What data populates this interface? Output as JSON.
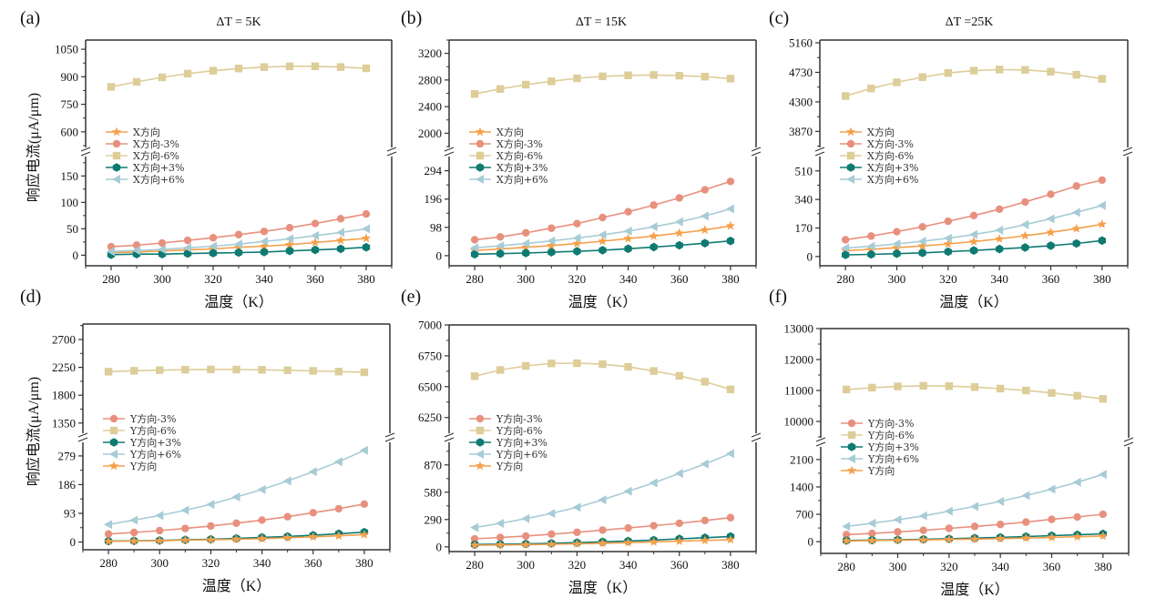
{
  "figure": {
    "y_axis_title": "响应电流(μA/μm)",
    "x_axis_title": "温度（K）"
  },
  "series_styles": {
    "base": {
      "color": "#F5A04A",
      "marker": "star"
    },
    "m3": {
      "color": "#E8907E",
      "marker": "circle"
    },
    "m6": {
      "color": "#DDCD99",
      "marker": "square"
    },
    "p3": {
      "color": "#0E7A72",
      "marker": "hexagon"
    },
    "p6": {
      "color": "#A7CCD6",
      "marker": "triangle-left"
    }
  },
  "chart_data": [
    {
      "panel": "(a)",
      "title": "ΔT = 5K",
      "type": "line",
      "xlabel": "温度（K）",
      "ylabel": "响应电流(μA/μm)",
      "x": [
        280,
        290,
        300,
        310,
        320,
        330,
        340,
        350,
        360,
        370,
        380
      ],
      "xlim": [
        270,
        390
      ],
      "xticks": [
        280,
        300,
        320,
        340,
        360,
        380
      ],
      "broken_y_axis": true,
      "upper_ylim": [
        520,
        1100
      ],
      "upper_yticks": [
        600,
        750,
        900,
        1050
      ],
      "lower_ylim": [
        -20,
        185
      ],
      "lower_yticks": [
        0,
        50,
        100,
        150
      ],
      "legend_position": "left-middle",
      "legend_order": [
        "base",
        "m3",
        "m6",
        "p3",
        "p6"
      ],
      "series": [
        {
          "key": "base",
          "name": "X方向",
          "values": [
            5,
            6,
            8,
            10,
            12,
            15,
            17,
            20,
            24,
            28,
            32
          ]
        },
        {
          "key": "m3",
          "name": "X方向-3%",
          "values": [
            16,
            19,
            23,
            28,
            33,
            39,
            45,
            52,
            60,
            69,
            78
          ]
        },
        {
          "key": "m6",
          "name": "X方向-6%",
          "values": [
            845,
            872,
            897,
            917,
            933,
            945,
            953,
            957,
            957,
            953,
            946
          ]
        },
        {
          "key": "p3",
          "name": "X方向+3%",
          "values": [
            1,
            2,
            2,
            3,
            4,
            5,
            6,
            8,
            10,
            12,
            15
          ]
        },
        {
          "key": "p6",
          "name": "X方向+6%",
          "values": [
            7,
            9,
            11,
            14,
            17,
            21,
            26,
            31,
            37,
            43,
            50
          ]
        }
      ]
    },
    {
      "panel": "(b)",
      "title": "ΔT = 15K",
      "type": "line",
      "xlabel": "温度（K）",
      "ylabel": "",
      "x": [
        280,
        290,
        300,
        310,
        320,
        330,
        340,
        350,
        360,
        370,
        380
      ],
      "xlim": [
        270,
        390
      ],
      "xticks": [
        280,
        300,
        320,
        340,
        360,
        380
      ],
      "broken_y_axis": true,
      "upper_ylim": [
        1800,
        3400
      ],
      "upper_yticks": [
        2000,
        2400,
        2800,
        3200
      ],
      "lower_ylim": [
        -35,
        340
      ],
      "lower_yticks": [
        0,
        98,
        196,
        294
      ],
      "legend_position": "left-middle",
      "legend_order": [
        "base",
        "m3",
        "m6",
        "p3",
        "p6"
      ],
      "series": [
        {
          "key": "base",
          "name": "X方向",
          "values": [
            18,
            23,
            29,
            35,
            42,
            50,
            59,
            68,
            78,
            89,
            103
          ]
        },
        {
          "key": "m3",
          "name": "X方向-3%",
          "values": [
            55,
            65,
            79,
            95,
            111,
            132,
            152,
            175,
            200,
            228,
            257
          ]
        },
        {
          "key": "m6",
          "name": "X方向-6%",
          "values": [
            2590,
            2665,
            2730,
            2780,
            2825,
            2855,
            2870,
            2875,
            2865,
            2850,
            2820
          ]
        },
        {
          "key": "p3",
          "name": "X方向+3%",
          "values": [
            5,
            7,
            9,
            12,
            15,
            19,
            24,
            30,
            36,
            43,
            51
          ]
        },
        {
          "key": "p6",
          "name": "X方向+6%",
          "values": [
            27,
            34,
            42,
            51,
            61,
            72,
            85,
            100,
            117,
            137,
            162
          ]
        }
      ]
    },
    {
      "panel": "(c)",
      "title": "ΔT =25K",
      "type": "line",
      "xlabel": "温度（K）",
      "ylabel": "",
      "x": [
        280,
        290,
        300,
        310,
        320,
        330,
        340,
        350,
        360,
        370,
        380
      ],
      "xlim": [
        270,
        390
      ],
      "xticks": [
        280,
        300,
        320,
        340,
        360,
        380
      ],
      "broken_y_axis": true,
      "upper_ylim": [
        3650,
        5200
      ],
      "upper_yticks": [
        3870,
        4300,
        4730,
        5160
      ],
      "lower_ylim": [
        -55,
        590
      ],
      "lower_yticks": [
        0,
        170,
        340,
        510
      ],
      "legend_position": "left-middle",
      "legend_order": [
        "base",
        "m3",
        "m6",
        "p3",
        "p6"
      ],
      "series": [
        {
          "key": "base",
          "name": "X方向",
          "values": [
            35,
            43,
            53,
            63,
            75,
            89,
            105,
            124,
            144,
            166,
            192
          ]
        },
        {
          "key": "m3",
          "name": "X方向-3%",
          "values": [
            100,
            122,
            148,
            177,
            210,
            244,
            282,
            325,
            371,
            420,
            455
          ]
        },
        {
          "key": "m6",
          "name": "X方向-6%",
          "values": [
            4385,
            4495,
            4585,
            4660,
            4720,
            4755,
            4770,
            4765,
            4740,
            4695,
            4635
          ]
        },
        {
          "key": "p3",
          "name": "X方向+3%",
          "values": [
            10,
            13,
            17,
            22,
            29,
            36,
            45,
            54,
            65,
            78,
            95
          ]
        },
        {
          "key": "p6",
          "name": "X方向+6%",
          "values": [
            50,
            61,
            75,
            91,
            109,
            131,
            157,
            190,
            225,
            263,
            304
          ]
        }
      ]
    },
    {
      "panel": "(d)",
      "title": "",
      "type": "line",
      "xlabel": "温度（K）",
      "ylabel": "响应电流(μA/μm)",
      "x": [
        280,
        290,
        300,
        310,
        320,
        330,
        340,
        350,
        360,
        370,
        380
      ],
      "xlim": [
        270,
        390
      ],
      "xticks": [
        280,
        300,
        320,
        340,
        360,
        380
      ],
      "broken_y_axis": true,
      "upper_ylim": [
        1200,
        2950
      ],
      "upper_yticks": [
        1350,
        1800,
        2250,
        2700
      ],
      "lower_ylim": [
        -25,
        320
      ],
      "lower_yticks": [
        0,
        93,
        186,
        279
      ],
      "legend_position": "left-middle",
      "legend_order": [
        "m3",
        "m6",
        "p3",
        "p6",
        "base"
      ],
      "series": [
        {
          "key": "m3",
          "name": "Y方向-3%",
          "values": [
            26,
            31,
            37,
            44,
            52,
            61,
            71,
            82,
            95,
            108,
            123
          ]
        },
        {
          "key": "m6",
          "name": "Y方向-6%",
          "values": [
            2180,
            2195,
            2205,
            2212,
            2216,
            2215,
            2210,
            2203,
            2193,
            2182,
            2170
          ]
        },
        {
          "key": "p3",
          "name": "Y方向+3%",
          "values": [
            3,
            4,
            5,
            7,
            9,
            12,
            15,
            18,
            22,
            27,
            32
          ]
        },
        {
          "key": "p6",
          "name": "Y方向+6%",
          "values": [
            57,
            71,
            86,
            103,
            122,
            146,
            170,
            198,
            228,
            260,
            297
          ]
        },
        {
          "key": "base",
          "name": "Y方向",
          "values": [
            2,
            3,
            4,
            6,
            7,
            9,
            11,
            14,
            17,
            20,
            24
          ]
        }
      ]
    },
    {
      "panel": "(e)",
      "title": "",
      "type": "line",
      "xlabel": "温度（K）",
      "ylabel": "",
      "x": [
        280,
        290,
        300,
        310,
        320,
        330,
        340,
        350,
        360,
        370,
        380
      ],
      "xlim": [
        270,
        390
      ],
      "xticks": [
        280,
        300,
        320,
        340,
        360,
        380
      ],
      "broken_y_axis": true,
      "upper_ylim": [
        6130,
        7000
      ],
      "upper_yticks": [
        6250,
        6500,
        6750,
        7000
      ],
      "lower_ylim": [
        -50,
        1100
      ],
      "lower_yticks": [
        0,
        290,
        580,
        870
      ],
      "legend_position": "left-middle",
      "legend_order": [
        "m3",
        "m6",
        "p3",
        "p6",
        "base"
      ],
      "series": [
        {
          "key": "m3",
          "name": "Y方向-3%",
          "values": [
            85,
            100,
            115,
            135,
            155,
            178,
            200,
            225,
            250,
            280,
            310
          ]
        },
        {
          "key": "m6",
          "name": "Y方向-6%",
          "values": [
            6585,
            6635,
            6668,
            6688,
            6690,
            6682,
            6660,
            6627,
            6588,
            6540,
            6478
          ]
        },
        {
          "key": "p3",
          "name": "Y方向+3%",
          "values": [
            25,
            28,
            32,
            38,
            45,
            53,
            62,
            72,
            85,
            97,
            110
          ]
        },
        {
          "key": "p6",
          "name": "Y方向+6%",
          "values": [
            205,
            250,
            300,
            355,
            420,
            500,
            590,
            680,
            780,
            880,
            990
          ]
        },
        {
          "key": "base",
          "name": "Y方向",
          "values": [
            18,
            20,
            23,
            27,
            32,
            38,
            45,
            52,
            60,
            68,
            77
          ]
        }
      ]
    },
    {
      "panel": "(f)",
      "title": "",
      "type": "line",
      "xlabel": "温度（K）",
      "ylabel": "",
      "x": [
        280,
        290,
        300,
        310,
        320,
        330,
        340,
        350,
        360,
        370,
        380
      ],
      "xlim": [
        270,
        390
      ],
      "xticks": [
        280,
        300,
        320,
        340,
        360,
        380
      ],
      "broken_y_axis": true,
      "upper_ylim": [
        9500,
        13000
      ],
      "upper_yticks": [
        10000,
        11000,
        12000,
        13000
      ],
      "lower_ylim": [
        -300,
        2400
      ],
      "lower_yticks": [
        0,
        700,
        1400,
        2100
      ],
      "legend_position": "left-middle",
      "legend_order": [
        "m3",
        "m6",
        "p3",
        "p6",
        "base"
      ],
      "series": [
        {
          "key": "m3",
          "name": "Y方向-3%",
          "values": [
            180,
            210,
            250,
            290,
            340,
            390,
            440,
            500,
            570,
            630,
            700
          ]
        },
        {
          "key": "m6",
          "name": "Y方向-6%",
          "values": [
            11030,
            11090,
            11130,
            11150,
            11140,
            11110,
            11060,
            11000,
            10920,
            10830,
            10730
          ]
        },
        {
          "key": "p3",
          "name": "Y方向+3%",
          "values": [
            30,
            40,
            50,
            60,
            75,
            90,
            110,
            130,
            155,
            175,
            200
          ]
        },
        {
          "key": "p6",
          "name": "Y方向+6%",
          "values": [
            390,
            470,
            560,
            660,
            780,
            900,
            1030,
            1180,
            1340,
            1520,
            1720
          ]
        },
        {
          "key": "base",
          "name": "Y方向",
          "values": [
            20,
            28,
            35,
            45,
            55,
            65,
            78,
            92,
            108,
            125,
            145
          ]
        }
      ]
    }
  ]
}
